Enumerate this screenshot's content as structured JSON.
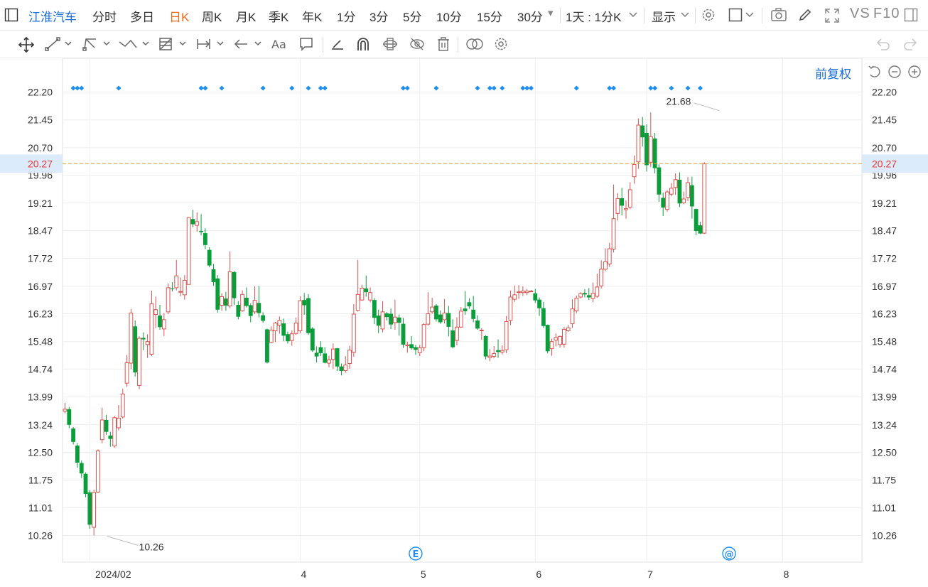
{
  "toolbar": {
    "stock_name": "江淮汽车",
    "periods": [
      "分时",
      "多日",
      "日K",
      "周K",
      "月K",
      "季K",
      "年K",
      "1分",
      "3分",
      "5分",
      "10分",
      "15分",
      "30分"
    ],
    "active_period": "日K",
    "dropdown_30": "▾",
    "interval_select": "1天 : 1分K",
    "display_select": "显示",
    "vs_label": "VS",
    "f10_label": "F10"
  },
  "adjust_label": "前复权",
  "colors": {
    "up": "#d9534f",
    "down": "#0a9e3b",
    "accent": "#1c6ed6",
    "active": "#f26b1d",
    "price_line": "#e0a030",
    "event_marker": "#1e8ff0"
  },
  "chart_data": {
    "type": "candlestick",
    "y_ticks": [
      "22.20",
      "21.45",
      "20.70",
      "19.96",
      "19.21",
      "18.47",
      "17.72",
      "16.97",
      "16.23",
      "15.48",
      "14.74",
      "13.99",
      "13.24",
      "12.50",
      "11.75",
      "11.01",
      "10.26"
    ],
    "ylim": [
      10.26,
      22.2
    ],
    "x_ticks": [
      {
        "label": "2024/02",
        "index": 6
      },
      {
        "label": "4",
        "index": 57
      },
      {
        "label": "5",
        "index": 86
      },
      {
        "label": "6",
        "index": 114
      },
      {
        "label": "7",
        "index": 141
      },
      {
        "label": "8",
        "index": 174
      }
    ],
    "current_price": "20.27",
    "annotations": [
      {
        "text": "10.26",
        "index": 10,
        "value": 10.26,
        "kind": "low"
      },
      {
        "text": "21.68",
        "index": 159,
        "value": 21.68,
        "kind": "high"
      }
    ],
    "event_badges": [
      {
        "symbol": "E",
        "index": 85
      },
      {
        "symbol": "@",
        "index": 161
      }
    ],
    "event_marker_indices": [
      2,
      3,
      4,
      13,
      33,
      34,
      38,
      48,
      55,
      59,
      62,
      63,
      82,
      83,
      90,
      100,
      103,
      104,
      106,
      111,
      112,
      113,
      124,
      132,
      133,
      142,
      143,
      147,
      151,
      154
    ],
    "candles": [
      [
        13.61,
        13.66,
        13.83,
        13.55
      ],
      [
        13.66,
        13.24,
        13.72,
        13.15
      ],
      [
        13.14,
        12.78,
        13.18,
        12.71
      ],
      [
        12.68,
        12.22,
        12.75,
        12.08
      ],
      [
        12.21,
        11.93,
        12.28,
        11.81
      ],
      [
        11.92,
        11.38,
        11.96,
        11.29
      ],
      [
        11.42,
        10.55,
        11.48,
        10.44
      ],
      [
        10.48,
        11.42,
        11.49,
        10.26
      ],
      [
        11.43,
        12.54,
        12.58,
        11.4
      ],
      [
        12.84,
        13.37,
        13.7,
        12.74
      ],
      [
        13.37,
        13.05,
        13.51,
        12.97
      ],
      [
        12.95,
        12.86,
        13.05,
        12.65
      ],
      [
        12.67,
        13.43,
        13.48,
        12.62
      ],
      [
        13.16,
        13.42,
        13.77,
        13.09
      ],
      [
        13.45,
        14.07,
        14.21,
        13.41
      ],
      [
        14.36,
        14.91,
        15.12,
        14.26
      ],
      [
        14.9,
        16.25,
        16.36,
        14.74
      ],
      [
        15.89,
        14.65,
        16.05,
        14.54
      ],
      [
        14.3,
        15.57,
        15.62,
        14.2
      ],
      [
        15.58,
        15.54,
        15.73,
        15.25
      ],
      [
        15.4,
        15.48,
        15.68,
        15.04
      ],
      [
        15.14,
        16.5,
        16.85,
        15.09
      ],
      [
        16.21,
        16.34,
        16.69,
        15.85
      ],
      [
        16.18,
        15.87,
        16.47,
        15.8
      ],
      [
        15.82,
        16.07,
        16.25,
        15.63
      ],
      [
        16.28,
        16.93,
        17.05,
        16.22
      ],
      [
        16.91,
        16.89,
        17.08,
        16.83
      ],
      [
        16.93,
        17.25,
        17.68,
        16.86
      ],
      [
        16.83,
        16.83,
        17.21,
        16.7
      ],
      [
        16.74,
        17.13,
        17.27,
        16.61
      ],
      [
        17.02,
        18.82,
        18.83,
        17.51
      ],
      [
        18.78,
        18.64,
        19.03,
        18.56
      ],
      [
        18.61,
        18.71,
        18.96,
        18.44
      ],
      [
        18.46,
        18.43,
        18.91,
        18.34
      ],
      [
        18.4,
        18.08,
        18.53,
        17.97
      ],
      [
        17.95,
        17.53,
        18.02,
        17.48
      ],
      [
        17.43,
        17.08,
        17.57,
        16.98
      ],
      [
        17.18,
        16.34,
        17.27,
        16.26
      ],
      [
        16.46,
        16.69,
        16.78,
        16.31
      ],
      [
        16.64,
        16.45,
        16.82,
        16.31
      ],
      [
        16.44,
        17.36,
        17.91,
        16.38
      ],
      [
        17.35,
        16.65,
        17.38,
        16.47
      ],
      [
        16.47,
        16.15,
        16.57,
        16.08
      ],
      [
        16.31,
        16.75,
        16.86,
        16.28
      ],
      [
        16.66,
        16.44,
        16.94,
        16.4
      ],
      [
        16.46,
        16.17,
        16.51,
        16.0
      ],
      [
        16.28,
        16.59,
        16.97,
        16.22
      ],
      [
        16.52,
        16.25,
        16.98,
        16.13
      ],
      [
        16.19,
        16.04,
        16.27,
        15.99
      ],
      [
        15.81,
        14.92,
        15.83,
        14.89
      ],
      [
        15.46,
        15.79,
        15.89,
        15.44
      ],
      [
        15.77,
        15.98,
        16.01,
        15.47
      ],
      [
        15.92,
        16.05,
        16.16,
        15.69
      ],
      [
        15.97,
        15.64,
        16.1,
        15.49
      ],
      [
        15.68,
        15.49,
        15.75,
        15.43
      ],
      [
        15.51,
        15.69,
        15.78,
        15.37
      ],
      [
        15.7,
        15.98,
        16.13,
        15.66
      ],
      [
        15.77,
        16.58,
        16.7,
        15.7
      ],
      [
        16.6,
        16.46,
        16.79,
        16.2
      ],
      [
        16.65,
        15.71,
        16.76,
        15.66
      ],
      [
        15.83,
        15.24,
        15.87,
        15.2
      ],
      [
        15.18,
        15.08,
        15.35,
        14.92
      ],
      [
        15.33,
        15.17,
        15.49,
        15.09
      ],
      [
        15.16,
        14.91,
        15.33,
        14.89
      ],
      [
        14.9,
        14.99,
        15.1,
        14.79
      ],
      [
        15.0,
        15.28,
        15.43,
        14.74
      ],
      [
        15.3,
        14.81,
        15.31,
        14.69
      ],
      [
        14.81,
        14.69,
        14.89,
        14.57
      ],
      [
        14.7,
        14.85,
        15.09,
        14.64
      ],
      [
        14.89,
        15.25,
        15.37,
        14.75
      ],
      [
        15.19,
        16.22,
        16.49,
        15.07
      ],
      [
        16.32,
        16.75,
        17.68,
        16.29
      ],
      [
        16.6,
        16.92,
        17.01,
        16.58
      ],
      [
        16.91,
        16.81,
        17.26,
        16.69
      ],
      [
        16.6,
        16.8,
        16.94,
        16.54
      ],
      [
        16.6,
        16.12,
        16.65,
        15.95
      ],
      [
        16.18,
        15.91,
        16.34,
        15.71
      ],
      [
        15.82,
        16.28,
        16.57,
        15.73
      ],
      [
        16.24,
        16.14,
        16.28,
        16.05
      ],
      [
        16.23,
        15.94,
        16.37,
        15.82
      ],
      [
        15.99,
        16.14,
        16.61,
        15.8
      ],
      [
        16.13,
        15.99,
        16.21,
        15.64
      ],
      [
        15.96,
        15.4,
        16.12,
        15.31
      ],
      [
        15.39,
        15.39,
        15.48,
        15.18
      ],
      [
        15.41,
        15.3,
        15.63,
        15.26
      ],
      [
        15.33,
        15.26,
        15.39,
        15.13
      ],
      [
        15.18,
        15.31,
        15.39,
        15.09
      ],
      [
        15.32,
        15.94,
        15.98,
        15.22
      ],
      [
        15.95,
        16.23,
        16.81,
        15.91
      ],
      [
        16.28,
        16.41,
        16.66,
        16.23
      ],
      [
        16.45,
        16.08,
        16.49,
        16.02
      ],
      [
        16.21,
        16.0,
        16.32,
        15.96
      ],
      [
        16.07,
        16.25,
        16.63,
        15.97
      ],
      [
        16.25,
        15.88,
        16.44,
        15.62
      ],
      [
        15.78,
        15.33,
        16.08,
        15.3
      ],
      [
        15.51,
        15.87,
        16.13,
        15.38
      ],
      [
        15.87,
        16.3,
        16.41,
        15.85
      ],
      [
        16.37,
        16.3,
        16.84,
        16.2
      ],
      [
        16.54,
        16.43,
        16.65,
        16.36
      ],
      [
        16.34,
        16.09,
        16.71,
        16.0
      ],
      [
        16.05,
        15.83,
        16.19,
        15.8
      ],
      [
        15.79,
        15.79,
        15.84,
        15.53
      ],
      [
        15.63,
        15.08,
        15.65,
        15.0
      ],
      [
        15.05,
        15.09,
        15.28,
        14.95
      ],
      [
        15.08,
        15.16,
        15.36,
        15.03
      ],
      [
        15.25,
        15.2,
        15.54,
        15.04
      ],
      [
        15.2,
        15.24,
        15.38,
        15.13
      ],
      [
        15.26,
        16.02,
        16.17,
        15.17
      ],
      [
        16.05,
        16.68,
        16.86,
        15.92
      ],
      [
        16.62,
        16.74,
        16.99,
        16.55
      ],
      [
        16.81,
        16.82,
        17.0,
        16.63
      ],
      [
        16.8,
        16.84,
        16.97,
        16.71
      ],
      [
        16.8,
        16.84,
        16.9,
        16.73
      ],
      [
        16.84,
        16.84,
        16.87,
        16.82
      ],
      [
        16.78,
        16.59,
        16.9,
        16.52
      ],
      [
        16.61,
        16.38,
        16.67,
        16.17
      ],
      [
        16.38,
        15.9,
        16.55,
        15.85
      ],
      [
        15.93,
        15.22,
        15.94,
        15.17
      ],
      [
        15.29,
        15.48,
        15.56,
        15.1
      ],
      [
        15.52,
        15.59,
        15.7,
        15.35
      ],
      [
        15.4,
        15.62,
        15.64,
        15.32
      ],
      [
        15.41,
        15.81,
        15.88,
        15.32
      ],
      [
        15.77,
        15.85,
        15.93,
        15.74
      ],
      [
        15.96,
        16.36,
        16.62,
        15.85
      ],
      [
        16.31,
        16.65,
        16.72,
        16.25
      ],
      [
        16.68,
        16.77,
        16.81,
        16.64
      ],
      [
        16.79,
        16.75,
        16.89,
        16.67
      ],
      [
        16.73,
        16.67,
        16.92,
        16.6
      ],
      [
        16.64,
        16.78,
        17.07,
        16.54
      ],
      [
        16.7,
        16.95,
        17.31,
        16.66
      ],
      [
        16.98,
        17.43,
        17.67,
        16.91
      ],
      [
        17.43,
        17.63,
        17.99,
        17.38
      ],
      [
        17.57,
        17.98,
        18.14,
        17.49
      ],
      [
        17.97,
        18.79,
        19.71,
        17.88
      ],
      [
        18.93,
        19.33,
        19.48,
        18.74
      ],
      [
        19.34,
        19.14,
        19.62,
        18.88
      ],
      [
        19.03,
        19.06,
        19.28,
        18.79
      ],
      [
        19.1,
        19.57,
        19.77,
        19.05
      ],
      [
        19.92,
        20.25,
        20.49,
        19.73
      ],
      [
        20.32,
        21.31,
        21.49,
        20.13
      ],
      [
        21.3,
        20.98,
        21.53,
        20.73
      ],
      [
        21.1,
        20.23,
        21.33,
        20.06
      ],
      [
        20.31,
        21.0,
        21.65,
        20.18
      ],
      [
        20.95,
        20.15,
        21.1,
        20.01
      ],
      [
        20.17,
        19.44,
        20.25,
        19.24
      ],
      [
        19.35,
        19.09,
        19.49,
        18.86
      ],
      [
        19.04,
        19.51,
        19.56,
        18.98
      ],
      [
        19.45,
        19.61,
        19.75,
        19.39
      ],
      [
        19.63,
        19.84,
        20.01,
        19.43
      ],
      [
        19.84,
        19.2,
        20.04,
        19.1
      ],
      [
        19.22,
        19.32,
        19.52,
        19.18
      ],
      [
        19.36,
        19.76,
        19.91,
        19.26
      ],
      [
        19.69,
        19.12,
        19.92,
        18.79
      ],
      [
        19.05,
        18.46,
        19.06,
        18.34
      ],
      [
        18.61,
        18.39,
        18.71,
        18.38
      ],
      [
        18.4,
        20.27,
        20.31,
        18.38
      ]
    ]
  }
}
